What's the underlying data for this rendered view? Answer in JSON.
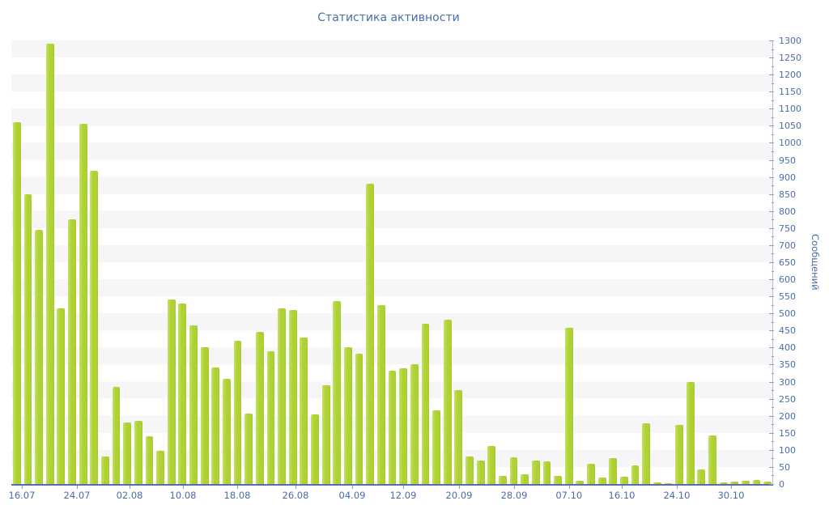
{
  "title": "Статистика активности",
  "y_axis": {
    "title": "Сообщений",
    "min": 0,
    "max": 1300,
    "major_step": 50,
    "minor_step": 25,
    "tick_values": [
      0,
      50,
      100,
      150,
      200,
      250,
      300,
      350,
      400,
      450,
      500,
      550,
      600,
      650,
      700,
      750,
      800,
      850,
      900,
      950,
      1000,
      1050,
      1100,
      1150,
      1200,
      1250,
      1300
    ]
  },
  "x_axis": {
    "ticks": [
      {
        "label": "16.07",
        "pos": 1.38
      },
      {
        "label": "24.07",
        "pos": 8.61
      },
      {
        "label": "02.08",
        "pos": 15.52
      },
      {
        "label": "10.08",
        "pos": 22.53
      },
      {
        "label": "18.08",
        "pos": 29.65
      },
      {
        "label": "26.08",
        "pos": 37.3
      },
      {
        "label": "04.09",
        "pos": 44.74
      },
      {
        "label": "12.09",
        "pos": 51.43
      },
      {
        "label": "20.09",
        "pos": 58.77
      },
      {
        "label": "28.09",
        "pos": 66.0
      },
      {
        "label": "07.10",
        "pos": 73.2
      },
      {
        "label": "16.10",
        "pos": 80.13
      },
      {
        "label": "24.10",
        "pos": 87.35
      },
      {
        "label": "30.10",
        "pos": 94.47
      }
    ]
  },
  "chart_data": {
    "type": "bar",
    "title": "Статистика активности",
    "xlabel": "",
    "ylabel": "Сообщений",
    "ylim": [
      0,
      1300
    ],
    "grid": "horizontal-stripes-every-50",
    "legend": "none",
    "x_tick_labels": [
      "16.07",
      "24.07",
      "02.08",
      "10.08",
      "18.08",
      "26.08",
      "04.09",
      "12.09",
      "20.09",
      "28.09",
      "07.10",
      "16.10",
      "24.10",
      "30.10"
    ],
    "values": [
      1061,
      850,
      745,
      1290,
      515,
      775,
      1055,
      919,
      80,
      285,
      180,
      185,
      140,
      97,
      540,
      530,
      464,
      400,
      341,
      309,
      421,
      207,
      446,
      389,
      515,
      510,
      430,
      205,
      290,
      536,
      402,
      381,
      880,
      525,
      333,
      340,
      350,
      470,
      215,
      482,
      276,
      80,
      68,
      112,
      23,
      78,
      28,
      70,
      66,
      23,
      459,
      10,
      60,
      19,
      76,
      21,
      55,
      179,
      5,
      2,
      173,
      300,
      43,
      142,
      5,
      6,
      9,
      11,
      7
    ]
  },
  "colors": {
    "bar": "#aed133",
    "bar_highlight": "#c6e163",
    "title_text": "#4a6da8",
    "axis_text": "#4a6da8",
    "axis_line": "#5b6dad",
    "tick_mark": "#8f9bc4",
    "stripe": "#f6f6f8",
    "background": "#ffffff"
  }
}
